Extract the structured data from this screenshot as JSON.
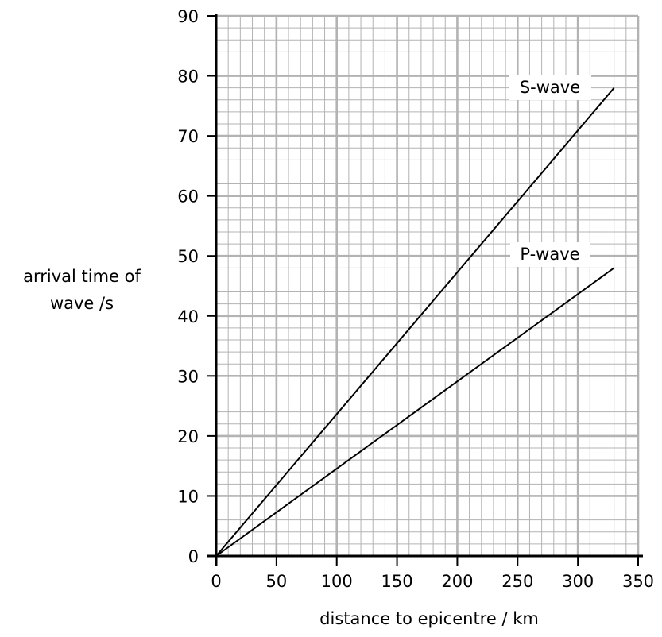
{
  "chart_data": {
    "type": "line",
    "title": "",
    "xlabel": "distance to epicentre / km",
    "ylabel_lines": [
      "arrival time of",
      "wave /s"
    ],
    "xlim": [
      0,
      350
    ],
    "ylim": [
      0,
      90
    ],
    "x_ticks": [
      "0",
      "50",
      "100",
      "150",
      "200",
      "250",
      "300",
      "350"
    ],
    "y_ticks": [
      "0",
      "10",
      "20",
      "30",
      "40",
      "50",
      "60",
      "70",
      "80",
      "90"
    ],
    "grid": {
      "major_x_step": 50,
      "major_y_step": 10,
      "minor_x_step": 10,
      "minor_y_step": 2,
      "color": "#b3b3b3"
    },
    "series": [
      {
        "name": "S-wave",
        "x": [
          0,
          330
        ],
        "y": [
          0,
          78
        ]
      },
      {
        "name": "P-wave",
        "x": [
          0,
          330
        ],
        "y": [
          0,
          48
        ]
      }
    ]
  }
}
